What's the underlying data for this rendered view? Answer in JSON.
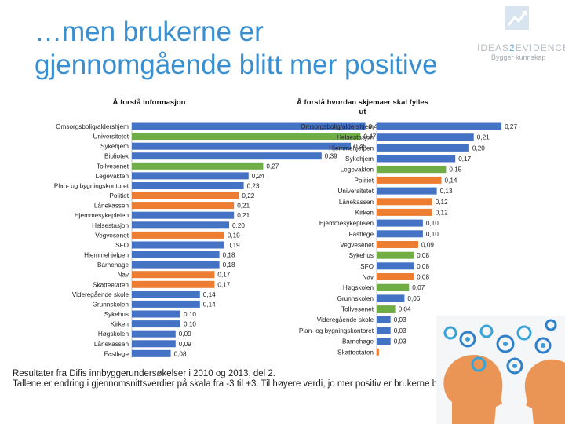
{
  "title": {
    "line1": "…men brukerne er",
    "line2": "gjennomgående blitt mer positive"
  },
  "logo": {
    "name_part1": "IDEAS",
    "name_part2": "2",
    "name_part3": "EVIDENCE",
    "tagline": "Bygger kunnskap",
    "icon": "chart-growth-icon"
  },
  "footer": {
    "line1": "Resultater fra Difis innbyggerundersøkelser i 2010 og 2013, del 2.",
    "line2": "Tallene er endring i gjennomsnittsverdier på skala fra -3 til +3. Til høyere verdi, jo mer positiv er brukerne blitt."
  },
  "colors": {
    "blue": "#4472c4",
    "green": "#70ad47",
    "orange": "#ed7d31",
    "title": "#3a8fd0"
  },
  "illustration": {
    "icon": "heads-with-gears-icon"
  },
  "chart_data": [
    {
      "type": "bar",
      "orientation": "horizontal",
      "title": "Å forstå informasjon",
      "xlim": [
        0,
        0.5
      ],
      "categories": [
        "Omsorgsbolig/aldershjem",
        "Universitetet",
        "Sykehjem",
        "Bibliotek",
        "Tollvesenet",
        "Legevakten",
        "Plan- og bygningskontoret",
        "Politiet",
        "Lånekassen",
        "Hjemmesykepleien",
        "Helsestasjon",
        "Vegvesenet",
        "SFO",
        "Hjemmehjelpen",
        "Barnehage",
        "Nav",
        "Skatteetaten",
        "Videregående skole",
        "Grunnskolen",
        "Sykehus",
        "Kirken",
        "Høgskolen",
        "Lånekassen",
        "Fastlege"
      ],
      "values": [
        0.48,
        0.47,
        0.45,
        0.39,
        0.27,
        0.24,
        0.23,
        0.22,
        0.21,
        0.21,
        0.2,
        0.19,
        0.19,
        0.18,
        0.18,
        0.17,
        0.17,
        0.14,
        0.14,
        0.1,
        0.1,
        0.09,
        0.09,
        0.08
      ],
      "labels": [
        "0,48",
        "0,47",
        "0,45",
        "0,39",
        "0,27",
        "0,24",
        "0,23",
        "0,22",
        "0,21",
        "0,21",
        "0,20",
        "0,19",
        "0,19",
        "0,18",
        "0,18",
        "0,17",
        "0,17",
        "0,14",
        "0,14",
        "0,10",
        "0,10",
        "0,09",
        "0,09",
        "0,08"
      ],
      "colors": [
        "blue",
        "green",
        "blue",
        "blue",
        "green",
        "blue",
        "blue",
        "orange",
        "orange",
        "blue",
        "blue",
        "orange",
        "blue",
        "blue",
        "blue",
        "orange",
        "orange",
        "blue",
        "blue",
        "blue",
        "blue",
        "blue",
        "blue",
        "blue"
      ]
    },
    {
      "type": "bar",
      "orientation": "horizontal",
      "title_line1": "Å forstå hvordan skjemaer skal fylles",
      "title_line2": "ut",
      "xlim": [
        0,
        0.28
      ],
      "categories": [
        "Omsorgsbolig/aldershjem",
        "Helsestasjon",
        "Hjemmehjelpen",
        "Sykehjem",
        "Legevakten",
        "Politiet",
        "Universitetet",
        "Lånekassen",
        "Kirken",
        "Hjemmesykepleien",
        "Fastlege",
        "Vegvesenet",
        "Sykehus",
        "SFO",
        "Nav",
        "Høgskolen",
        "Grunnskolen",
        "Tollvesenet",
        "Videregående skole",
        "Plan- og bygningskontoret",
        "Barnehage",
        "Skatteetaten"
      ],
      "values": [
        0.27,
        0.21,
        0.2,
        0.17,
        0.15,
        0.14,
        0.13,
        0.12,
        0.12,
        0.1,
        0.1,
        0.09,
        0.08,
        0.08,
        0.08,
        0.07,
        0.06,
        0.04,
        0.03,
        0.03,
        0.03,
        0.005
      ],
      "labels": [
        "0,27",
        "0,21",
        "0,20",
        "0,17",
        "0,15",
        "0,14",
        "0,13",
        "0,12",
        "0,12",
        "0,10",
        "0,10",
        "0,09",
        "0,08",
        "0,08",
        "0,08",
        "0,07",
        "0,06",
        "0,04",
        "0,03",
        "0,03",
        "0,03",
        ""
      ],
      "colors": [
        "blue",
        "blue",
        "blue",
        "blue",
        "green",
        "orange",
        "blue",
        "orange",
        "orange",
        "blue",
        "blue",
        "orange",
        "green",
        "blue",
        "orange",
        "green",
        "blue",
        "green",
        "blue",
        "blue",
        "blue",
        "orange"
      ]
    }
  ]
}
